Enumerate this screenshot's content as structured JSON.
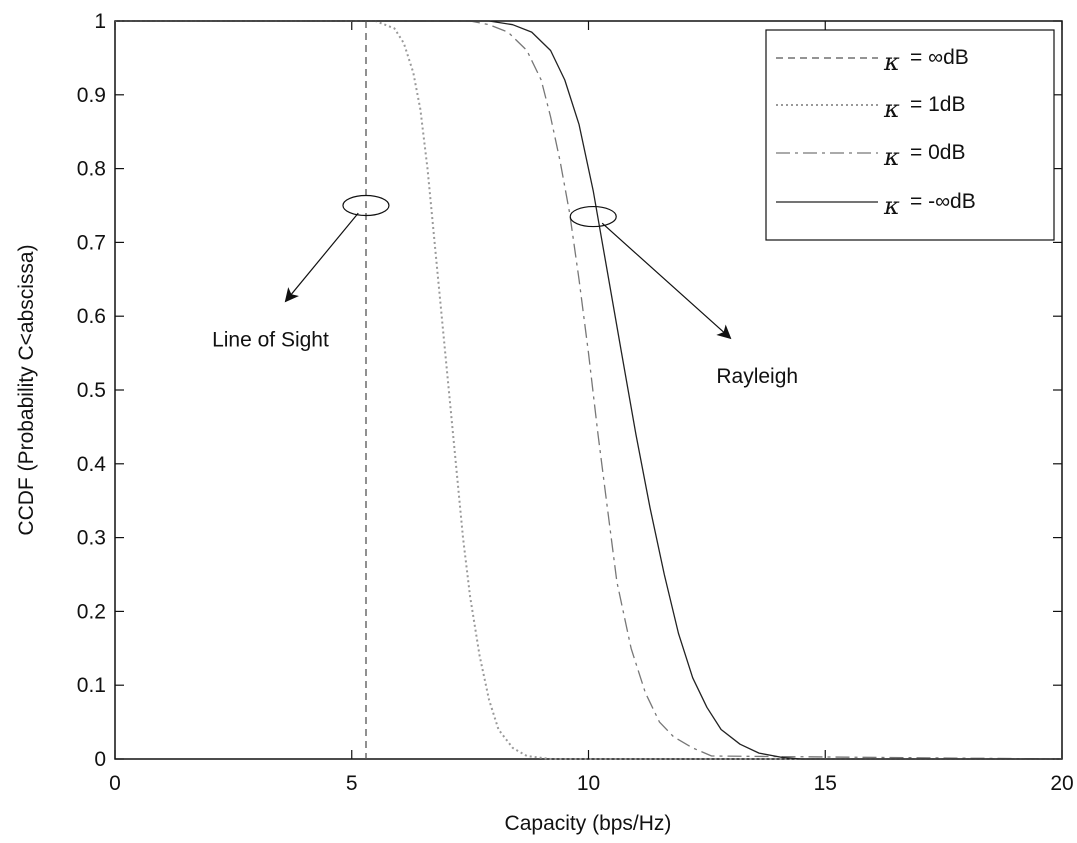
{
  "chart_data": {
    "type": "line",
    "title": "",
    "xlabel": "Capacity (bps/Hz)",
    "ylabel": "CCDF (Probability C<abscissa)",
    "xlim": [
      0,
      20
    ],
    "ylim": [
      0,
      1
    ],
    "xticks": [
      0,
      5,
      10,
      15,
      20
    ],
    "xtick_labels": [
      "0",
      "5",
      "10",
      "15",
      "20"
    ],
    "yticks": [
      0,
      0.1,
      0.2,
      0.3,
      0.4,
      0.5,
      0.6,
      0.7,
      0.8,
      0.9,
      1
    ],
    "ytick_labels": [
      "0",
      "0.1",
      "0.2",
      "0.3",
      "0.4",
      "0.5",
      "0.6",
      "0.7",
      "0.8",
      "0.9",
      "1"
    ],
    "grid": false,
    "legend_position": "top-right",
    "series": [
      {
        "name": "= ∞dB",
        "kappa_symbol": "κ",
        "style": "dashed",
        "color": "#555555",
        "x": [
          5.3,
          5.3,
          5.3
        ],
        "y": [
          1.0,
          0.5,
          0.0
        ]
      },
      {
        "name": "= 1dB",
        "kappa_symbol": "κ",
        "style": "dotted",
        "color": "#999999",
        "x": [
          0,
          5.5,
          5.9,
          6.1,
          6.3,
          6.45,
          6.6,
          6.75,
          6.9,
          7.05,
          7.2,
          7.35,
          7.5,
          7.7,
          7.9,
          8.1,
          8.4,
          8.7,
          9.2,
          20
        ],
        "y": [
          1.0,
          1.0,
          0.99,
          0.97,
          0.93,
          0.88,
          0.8,
          0.7,
          0.6,
          0.5,
          0.4,
          0.3,
          0.22,
          0.14,
          0.08,
          0.04,
          0.015,
          0.004,
          0.0,
          0.0
        ]
      },
      {
        "name": "= 0dB",
        "kappa_symbol": "κ",
        "style": "dashdot",
        "color": "#777777",
        "x": [
          0,
          7.5,
          7.9,
          8.3,
          8.7,
          9.0,
          9.2,
          9.4,
          9.6,
          9.8,
          10.0,
          10.2,
          10.4,
          10.6,
          10.9,
          11.2,
          11.5,
          11.8,
          12.2,
          12.6,
          20
        ],
        "y": [
          1.0,
          1.0,
          0.995,
          0.985,
          0.96,
          0.92,
          0.87,
          0.81,
          0.74,
          0.65,
          0.55,
          0.44,
          0.34,
          0.24,
          0.15,
          0.09,
          0.05,
          0.03,
          0.015,
          0.004,
          0.0
        ]
      },
      {
        "name": "= -∞dB",
        "kappa_symbol": "κ",
        "style": "solid",
        "color": "#222222",
        "x": [
          0,
          7.9,
          8.4,
          8.8,
          9.2,
          9.5,
          9.8,
          10.1,
          10.4,
          10.7,
          11.0,
          11.3,
          11.6,
          11.9,
          12.2,
          12.5,
          12.8,
          13.2,
          13.6,
          14.1,
          14.5,
          20
        ],
        "y": [
          1.0,
          1.0,
          0.995,
          0.985,
          0.96,
          0.92,
          0.86,
          0.77,
          0.66,
          0.55,
          0.44,
          0.34,
          0.25,
          0.17,
          0.11,
          0.07,
          0.04,
          0.02,
          0.008,
          0.002,
          0.0,
          0.0
        ]
      }
    ],
    "annotations": [
      {
        "text": "Line of Sight",
        "ellipse_at": [
          5.3,
          0.75
        ],
        "arrow_to": [
          3.6,
          0.62
        ],
        "label_at": [
          2.05,
          0.57
        ]
      },
      {
        "text": "Rayleigh",
        "ellipse_at": [
          10.1,
          0.735
        ],
        "arrow_to": [
          13.0,
          0.57
        ],
        "label_at": [
          12.7,
          0.52
        ]
      }
    ]
  }
}
